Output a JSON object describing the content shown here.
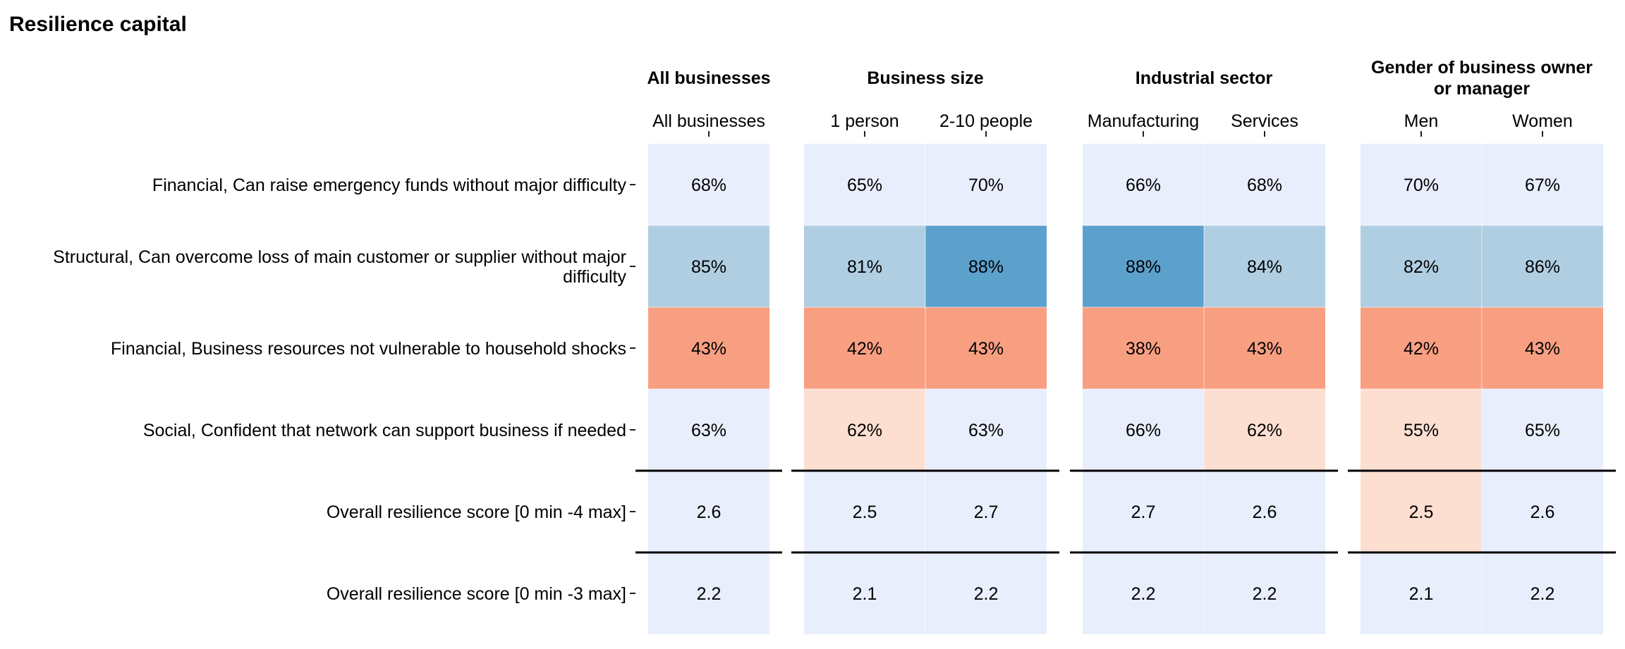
{
  "chart_data": {
    "type": "heatmap",
    "title": "Resilience capital",
    "groups": [
      {
        "label": "All businesses",
        "columns": [
          "All businesses"
        ]
      },
      {
        "label": "Business size",
        "columns": [
          "1 person",
          "2-10 people"
        ]
      },
      {
        "label": "Industrial sector",
        "columns": [
          "Manufacturing",
          "Services"
        ]
      },
      {
        "label": "Gender of business owner or manager",
        "label_lines": [
          "Gender of business owner",
          "or manager"
        ],
        "columns": [
          "Men",
          "Women"
        ]
      }
    ],
    "rows": [
      {
        "label": "Financial, Can raise emergency funds without major difficulty",
        "label_lines": [
          "Financial, Can raise emergency funds without major difficulty"
        ],
        "values": [
          "68%",
          "65%",
          "70%",
          "66%",
          "68%",
          "70%",
          "67%"
        ],
        "colors": [
          "#e9eefc",
          "#e9eefc",
          "#e9eefc",
          "#e9eefc",
          "#e9eefc",
          "#e9eefc",
          "#e9eefc"
        ]
      },
      {
        "label": "Structural, Can overcome loss of main customer or supplier without major difficulty",
        "label_lines": [
          "Structural, Can overcome loss of main customer or supplier without major",
          "difficulty"
        ],
        "values": [
          "85%",
          "81%",
          "88%",
          "88%",
          "84%",
          "82%",
          "86%"
        ],
        "colors": [
          "#afcee2",
          "#afcee2",
          "#5ca1cc",
          "#5ca1cc",
          "#afcee2",
          "#afcee2",
          "#afcee2"
        ]
      },
      {
        "label": "Financial, Business resources not vulnerable to household shocks",
        "label_lines": [
          "Financial, Business resources not vulnerable to household shocks"
        ],
        "values": [
          "43%",
          "42%",
          "43%",
          "38%",
          "43%",
          "42%",
          "43%"
        ],
        "colors": [
          "#f89f82",
          "#f89f82",
          "#f89f82",
          "#f89f82",
          "#f89f82",
          "#f89f82",
          "#f89f82"
        ]
      },
      {
        "label": "Social, Confident that network can support business if needed",
        "label_lines": [
          "Social, Confident that network can support business if needed"
        ],
        "values": [
          "63%",
          "62%",
          "63%",
          "66%",
          "62%",
          "55%",
          "65%"
        ],
        "colors": [
          "#e9eefc",
          "#fddfd1",
          "#e9eefc",
          "#e9eefc",
          "#fddfd1",
          "#fddfd1",
          "#e9eefc"
        ]
      },
      {
        "label": "Overall resilience score [0 min -4 max]",
        "label_lines": [
          "Overall resilience score [0 min -4 max]"
        ],
        "values": [
          "2.6",
          "2.5",
          "2.7",
          "2.7",
          "2.6",
          "2.5",
          "2.6"
        ],
        "colors": [
          "#e9eefc",
          "#e9eefc",
          "#e9eefc",
          "#e9eefc",
          "#e9eefc",
          "#fddfd1",
          "#e9eefc"
        ]
      },
      {
        "label": "Overall resilience score [0 min -3 max]",
        "label_lines": [
          "Overall resilience score [0 min -3 max]"
        ],
        "values": [
          "2.2",
          "2.1",
          "2.2",
          "2.2",
          "2.2",
          "2.1",
          "2.2"
        ],
        "colors": [
          "#e9eefc",
          "#e9eefc",
          "#e9eefc",
          "#e9eefc",
          "#e9eefc",
          "#e9eefc",
          "#e9eefc"
        ]
      }
    ],
    "separators_after_rows": [
      4,
      5
    ],
    "grid": false,
    "legend": "none"
  }
}
